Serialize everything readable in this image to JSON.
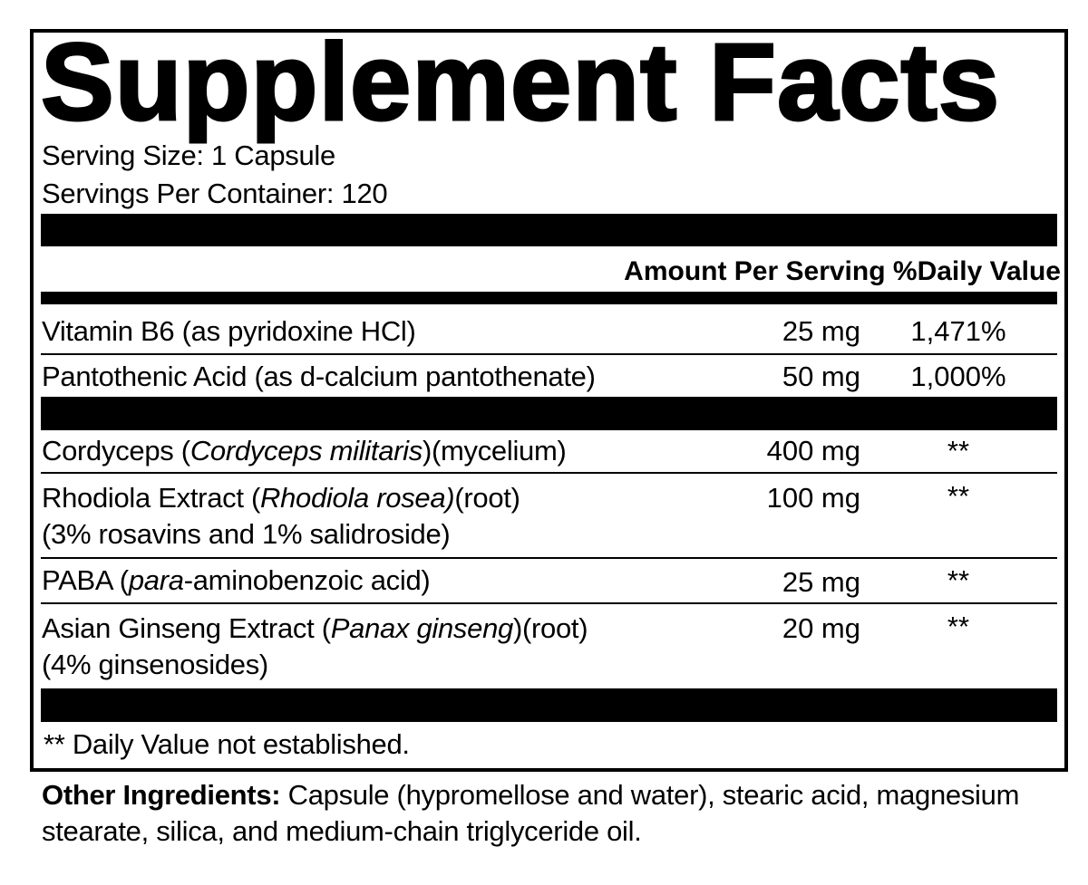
{
  "title": "Supplement Facts",
  "serving_size": "Serving Size: 1 Capsule",
  "servings_per_container": "Servings Per Container: 120",
  "header": {
    "amount": "Amount Per Serving",
    "dv": "%Daily Value"
  },
  "vitamins": [
    {
      "name": "Vitamin B6 (as pyridoxine HCl)",
      "amount": "25 mg",
      "dv": "1,471%"
    },
    {
      "name": "Pantothenic Acid (as d-calcium pantothenate)",
      "amount": "50 mg",
      "dv": "1,000%"
    }
  ],
  "others": [
    {
      "pre": "Cordyceps (",
      "italic": "Cordyceps militaris",
      "post": ")(mycelium)",
      "line2": "",
      "amount": "400 mg",
      "dv": "**"
    },
    {
      "pre": "Rhodiola Extract (",
      "italic": "Rhodiola rosea)",
      "post": "(root)",
      "line2": "(3% rosavins and 1% salidroside)",
      "amount": "100 mg",
      "dv": "**"
    },
    {
      "pre": "PABA (",
      "italic": "para",
      "post": "-aminobenzoic acid)",
      "line2": "",
      "amount": "25 mg",
      "dv": "**"
    },
    {
      "pre": "Asian Ginseng Extract (",
      "italic": "Panax ginseng",
      "post": ")(root)",
      "line2": "(4% ginsenosides)",
      "amount": "20 mg",
      "dv": "**"
    }
  ],
  "footnote": "** Daily Value not established.",
  "other_ingredients": {
    "label": "Other Ingredients:",
    "text": " Capsule (hypromellose and water), stearic acid, magnesium stearate, silica, and medium-chain triglyceride oil."
  }
}
